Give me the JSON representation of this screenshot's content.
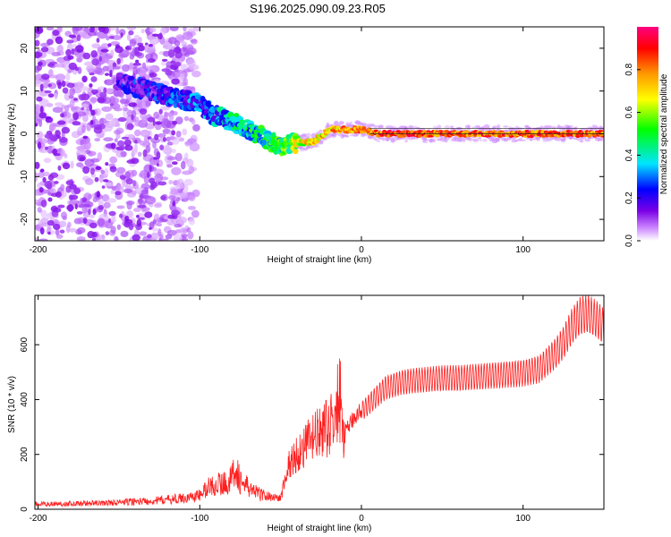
{
  "title": "S196.2025.090.09.23.R05",
  "chart_data": [
    {
      "type": "heatmap",
      "xlabel": "Height of straight line (km)",
      "ylabel": "Frequency (Hz)",
      "xlim": [
        -202,
        150
      ],
      "ylim": [
        -25,
        25
      ],
      "xticks": [
        -200,
        -100,
        0,
        100
      ],
      "yticks": [
        -20,
        -10,
        0,
        10,
        20
      ],
      "colorbar": {
        "label": "Normalized spectral amplitude",
        "range": [
          0.0,
          1.0
        ],
        "ticks": [
          0.0,
          0.2,
          0.4,
          0.6,
          0.8
        ],
        "colors": [
          "#ffffff",
          "#cc88ff",
          "#7a00e6",
          "#0000ff",
          "#00e5ff",
          "#00ff00",
          "#ffff00",
          "#ff9900",
          "#ff0000",
          "#ff0080"
        ]
      },
      "ridge": {
        "description_points_x": [
          -200,
          -150,
          -130,
          -120,
          -100,
          -90,
          -80,
          -70,
          -60,
          -50,
          -40,
          -30,
          -20,
          -10,
          0,
          10,
          50,
          100,
          150
        ],
        "frequency_hz": [
          15,
          12,
          10,
          9,
          7,
          4,
          3,
          1,
          -1,
          -3,
          -2,
          -2,
          1,
          1,
          1,
          0,
          0,
          0,
          0
        ],
        "amplitude": [
          0.35,
          0.38,
          0.4,
          0.42,
          0.45,
          0.5,
          0.55,
          0.58,
          0.6,
          0.62,
          0.75,
          0.85,
          0.85,
          0.88,
          0.9,
          0.95,
          0.95,
          0.95,
          0.95
        ]
      }
    },
    {
      "type": "line",
      "xlabel": "Height of straight line (km)",
      "ylabel": "SNR (10 * v/v)",
      "xlim": [
        -202,
        150
      ],
      "ylim": [
        0,
        780
      ],
      "xticks": [
        -200,
        -100,
        0,
        100
      ],
      "yticks": [
        0,
        200,
        400,
        600
      ],
      "color": "#ff2020",
      "x": [
        -202,
        -190,
        -180,
        -170,
        -160,
        -150,
        -140,
        -130,
        -120,
        -110,
        -100,
        -95,
        -90,
        -85,
        -80,
        -78,
        -75,
        -70,
        -65,
        -60,
        -55,
        -50,
        -45,
        -40,
        -35,
        -30,
        -25,
        -20,
        -17,
        -15,
        -13,
        -12,
        -10,
        -5,
        0,
        5,
        10,
        15,
        20,
        25,
        30,
        40,
        50,
        60,
        70,
        80,
        90,
        100,
        110,
        115,
        120,
        125,
        130,
        135,
        140,
        145,
        150
      ],
      "y": [
        18,
        20,
        20,
        22,
        22,
        25,
        28,
        30,
        35,
        40,
        50,
        80,
        90,
        95,
        110,
        170,
        100,
        80,
        60,
        50,
        45,
        40,
        160,
        200,
        230,
        260,
        280,
        300,
        330,
        330,
        320,
        300,
        280,
        330,
        370,
        400,
        430,
        460,
        470,
        480,
        485,
        490,
        495,
        495,
        500,
        505,
        510,
        515,
        530,
        560,
        590,
        630,
        690,
        730,
        740,
        720,
        690
      ]
    }
  ]
}
